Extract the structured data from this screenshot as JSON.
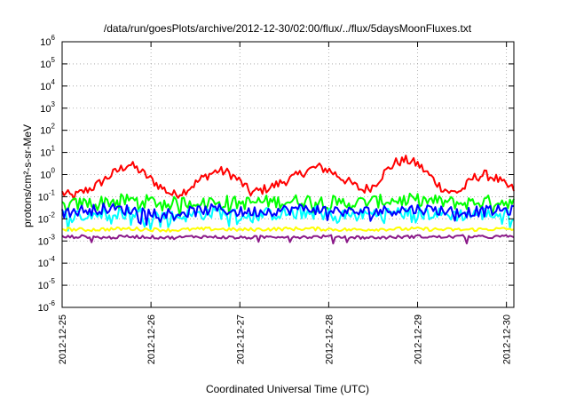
{
  "chart_data": {
    "type": "line",
    "title": "/data/run/goesPlots/archive/2012-12-30/02:00/flux/../flux/5daysMoonFluxes.txt",
    "xlabel": "Coordinated Universal Time (UTC)",
    "ylabel": "protons/cm²-s-sr-MeV",
    "yscale": "log",
    "ylim": [
      1e-06,
      1000000.0
    ],
    "yticks": [
      {
        "value": 1e-06,
        "base": "10",
        "exp": "-6"
      },
      {
        "value": 1e-05,
        "base": "10",
        "exp": "-5"
      },
      {
        "value": 0.0001,
        "base": "10",
        "exp": "-4"
      },
      {
        "value": 0.001,
        "base": "10",
        "exp": "-3"
      },
      {
        "value": 0.01,
        "base": "10",
        "exp": "-2"
      },
      {
        "value": 0.1,
        "base": "10",
        "exp": "-1"
      },
      {
        "value": 1.0,
        "base": "10",
        "exp": "0"
      },
      {
        "value": 10.0,
        "base": "10",
        "exp": "1"
      },
      {
        "value": 100.0,
        "base": "10",
        "exp": "2"
      },
      {
        "value": 1000.0,
        "base": "10",
        "exp": "3"
      },
      {
        "value": 10000.0,
        "base": "10",
        "exp": "4"
      },
      {
        "value": 100000.0,
        "base": "10",
        "exp": "5"
      },
      {
        "value": 1000000.0,
        "base": "10",
        "exp": "6"
      }
    ],
    "xlim": [
      "2012-12-25T00:00",
      "2012-12-30T02:00"
    ],
    "xticks": [
      "2012-12-25",
      "2012-12-26",
      "2012-12-27",
      "2012-12-28",
      "2012-12-29",
      "2012-12-30"
    ],
    "grid": true,
    "legend": "none",
    "series": [
      {
        "color": "#ff0000",
        "x": [
          "2012-12-25T00:00",
          "2012-12-25T03:00",
          "2012-12-25T06:00",
          "2012-12-25T09:00",
          "2012-12-25T12:00",
          "2012-12-25T15:00",
          "2012-12-25T18:00",
          "2012-12-25T21:00",
          "2012-12-26T00:00",
          "2012-12-26T03:00",
          "2012-12-26T06:00",
          "2012-12-26T09:00",
          "2012-12-26T12:00",
          "2012-12-26T15:00",
          "2012-12-26T18:00",
          "2012-12-26T21:00",
          "2012-12-27T00:00",
          "2012-12-27T03:00",
          "2012-12-27T06:00",
          "2012-12-27T09:00",
          "2012-12-27T12:00",
          "2012-12-27T15:00",
          "2012-12-27T18:00",
          "2012-12-27T21:00",
          "2012-12-28T00:00",
          "2012-12-28T03:00",
          "2012-12-28T06:00",
          "2012-12-28T09:00",
          "2012-12-28T12:00",
          "2012-12-28T15:00",
          "2012-12-28T18:00",
          "2012-12-28T21:00",
          "2012-12-29T00:00",
          "2012-12-29T03:00",
          "2012-12-29T06:00",
          "2012-12-29T09:00",
          "2012-12-29T12:00",
          "2012-12-29T15:00",
          "2012-12-29T18:00",
          "2012-12-29T21:00",
          "2012-12-30T00:00",
          "2012-12-30T02:00"
        ],
        "values": [
          0.15,
          0.1,
          0.18,
          0.3,
          0.7,
          1.5,
          3.0,
          1.5,
          0.6,
          0.25,
          0.12,
          0.18,
          0.4,
          0.9,
          1.5,
          1.2,
          0.5,
          0.15,
          0.2,
          0.3,
          0.5,
          0.8,
          1.5,
          2.2,
          1.6,
          0.8,
          0.4,
          0.2,
          0.3,
          1.2,
          3.5,
          4.5,
          3.0,
          1.0,
          0.3,
          0.15,
          0.2,
          0.7,
          1.0,
          0.7,
          0.3,
          0.22
        ]
      },
      {
        "color": "#00ff00",
        "x": [
          "2012-12-25T00:00",
          "2012-12-25T06:00",
          "2012-12-25T12:00",
          "2012-12-25T18:00",
          "2012-12-26T00:00",
          "2012-12-26T06:00",
          "2012-12-26T12:00",
          "2012-12-26T18:00",
          "2012-12-27T00:00",
          "2012-12-27T06:00",
          "2012-12-27T12:00",
          "2012-12-27T18:00",
          "2012-12-28T00:00",
          "2012-12-28T06:00",
          "2012-12-28T12:00",
          "2012-12-28T18:00",
          "2012-12-29T00:00",
          "2012-12-29T06:00",
          "2012-12-29T12:00",
          "2012-12-29T18:00",
          "2012-12-30T00:00",
          "2012-12-30T02:00"
        ],
        "values": [
          0.04,
          0.05,
          0.06,
          0.07,
          0.06,
          0.05,
          0.06,
          0.07,
          0.05,
          0.06,
          0.06,
          0.07,
          0.06,
          0.05,
          0.06,
          0.07,
          0.07,
          0.06,
          0.05,
          0.06,
          0.06,
          0.05
        ]
      },
      {
        "color": "#00ffff",
        "x": [
          "2012-12-25T00:00",
          "2012-12-25T06:00",
          "2012-12-25T12:00",
          "2012-12-25T18:00",
          "2012-12-26T00:00",
          "2012-12-26T06:00",
          "2012-12-26T12:00",
          "2012-12-26T18:00",
          "2012-12-27T00:00",
          "2012-12-27T06:00",
          "2012-12-27T12:00",
          "2012-12-27T18:00",
          "2012-12-28T00:00",
          "2012-12-28T06:00",
          "2012-12-28T12:00",
          "2012-12-28T18:00",
          "2012-12-29T00:00",
          "2012-12-29T06:00",
          "2012-12-29T12:00",
          "2012-12-29T18:00",
          "2012-12-30T00:00",
          "2012-12-30T02:00"
        ],
        "values": [
          0.012,
          0.015,
          0.018,
          0.02,
          0.015,
          0.012,
          0.016,
          0.02,
          0.014,
          0.016,
          0.018,
          0.02,
          0.016,
          0.014,
          0.017,
          0.019,
          0.018,
          0.016,
          0.015,
          0.017,
          0.016,
          0.015
        ]
      },
      {
        "color": "#0000ff",
        "x": [
          "2012-12-25T00:00",
          "2012-12-25T06:00",
          "2012-12-25T12:00",
          "2012-12-25T18:00",
          "2012-12-26T00:00",
          "2012-12-26T06:00",
          "2012-12-26T12:00",
          "2012-12-26T18:00",
          "2012-12-27T00:00",
          "2012-12-27T06:00",
          "2012-12-27T12:00",
          "2012-12-27T18:00",
          "2012-12-28T00:00",
          "2012-12-28T06:00",
          "2012-12-28T12:00",
          "2012-12-28T18:00",
          "2012-12-29T00:00",
          "2012-12-29T06:00",
          "2012-12-29T12:00",
          "2012-12-29T18:00",
          "2012-12-30T00:00",
          "2012-12-30T02:00"
        ],
        "values": [
          0.02,
          0.025,
          0.03,
          0.025,
          0.02,
          0.018,
          0.022,
          0.028,
          0.02,
          0.022,
          0.025,
          0.03,
          0.025,
          0.02,
          0.022,
          0.025,
          0.028,
          0.025,
          0.02,
          0.022,
          0.025,
          0.022
        ]
      },
      {
        "color": "#ffff00",
        "x": [
          "2012-12-25T00:00",
          "2012-12-25T06:00",
          "2012-12-25T12:00",
          "2012-12-25T18:00",
          "2012-12-26T00:00",
          "2012-12-26T06:00",
          "2012-12-26T12:00",
          "2012-12-26T18:00",
          "2012-12-27T00:00",
          "2012-12-27T06:00",
          "2012-12-27T12:00",
          "2012-12-27T18:00",
          "2012-12-28T00:00",
          "2012-12-28T06:00",
          "2012-12-28T12:00",
          "2012-12-28T18:00",
          "2012-12-29T00:00",
          "2012-12-29T06:00",
          "2012-12-29T12:00",
          "2012-12-29T18:00",
          "2012-12-30T00:00",
          "2012-12-30T02:00"
        ],
        "values": [
          0.0035,
          0.0032,
          0.0034,
          0.0036,
          0.0033,
          0.0031,
          0.0034,
          0.0035,
          0.0032,
          0.0034,
          0.0035,
          0.0036,
          0.0034,
          0.0032,
          0.0034,
          0.0035,
          0.0035,
          0.0033,
          0.0032,
          0.0034,
          0.0035,
          0.0034
        ]
      },
      {
        "color": "#8b1a89",
        "x": [
          "2012-12-25T00:00",
          "2012-12-25T06:00",
          "2012-12-25T12:00",
          "2012-12-25T18:00",
          "2012-12-26T00:00",
          "2012-12-26T06:00",
          "2012-12-26T12:00",
          "2012-12-26T18:00",
          "2012-12-27T00:00",
          "2012-12-27T06:00",
          "2012-12-27T12:00",
          "2012-12-27T18:00",
          "2012-12-28T00:00",
          "2012-12-28T06:00",
          "2012-12-28T12:00",
          "2012-12-28T18:00",
          "2012-12-29T00:00",
          "2012-12-29T06:00",
          "2012-12-29T12:00",
          "2012-12-29T18:00",
          "2012-12-30T00:00",
          "2012-12-30T02:00"
        ],
        "values": [
          0.0015,
          0.0016,
          0.0014,
          0.0016,
          0.0015,
          0.0014,
          0.0016,
          0.0015,
          0.0014,
          0.0015,
          0.0016,
          0.0015,
          0.0016,
          0.0015,
          0.0014,
          0.0015,
          0.0016,
          0.0015,
          0.0016,
          0.0015,
          0.0016,
          0.0016
        ]
      }
    ]
  }
}
